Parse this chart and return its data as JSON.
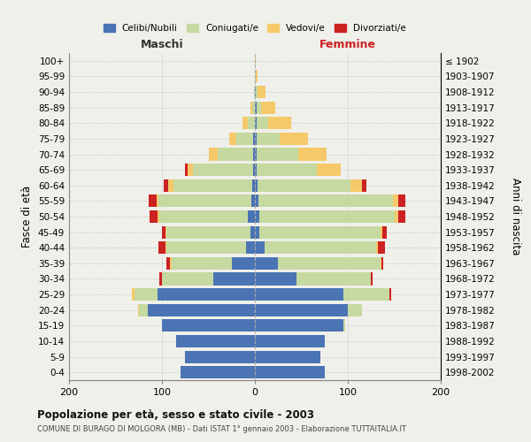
{
  "age_groups": [
    "0-4",
    "5-9",
    "10-14",
    "15-19",
    "20-24",
    "25-29",
    "30-34",
    "35-39",
    "40-44",
    "45-49",
    "50-54",
    "55-59",
    "60-64",
    "65-69",
    "70-74",
    "75-79",
    "80-84",
    "85-89",
    "90-94",
    "95-99",
    "100+"
  ],
  "birth_years": [
    "1998-2002",
    "1993-1997",
    "1988-1992",
    "1983-1987",
    "1978-1982",
    "1973-1977",
    "1968-1972",
    "1963-1967",
    "1958-1962",
    "1953-1957",
    "1948-1952",
    "1943-1947",
    "1938-1942",
    "1933-1937",
    "1928-1932",
    "1923-1927",
    "1918-1922",
    "1913-1917",
    "1908-1912",
    "1903-1907",
    "≤ 1902"
  ],
  "male": {
    "celibe": [
      80,
      75,
      85,
      100,
      115,
      105,
      45,
      25,
      10,
      5,
      8,
      4,
      3,
      2,
      2,
      2,
      0,
      0,
      0,
      0,
      0
    ],
    "coniugato": [
      0,
      0,
      0,
      0,
      10,
      25,
      55,
      65,
      85,
      90,
      95,
      100,
      85,
      65,
      38,
      18,
      8,
      3,
      1,
      0,
      0
    ],
    "vedovo": [
      0,
      0,
      0,
      0,
      1,
      2,
      0,
      1,
      1,
      1,
      2,
      2,
      5,
      5,
      10,
      8,
      5,
      2,
      0,
      0,
      0
    ],
    "divorziato": [
      0,
      0,
      0,
      0,
      0,
      0,
      3,
      4,
      8,
      4,
      8,
      8,
      5,
      3,
      0,
      0,
      0,
      0,
      0,
      0,
      0
    ]
  },
  "female": {
    "nubile": [
      75,
      70,
      75,
      95,
      100,
      95,
      45,
      25,
      10,
      5,
      5,
      4,
      3,
      2,
      2,
      2,
      2,
      2,
      1,
      0,
      0
    ],
    "coniugata": [
      0,
      0,
      0,
      2,
      15,
      50,
      80,
      110,
      120,
      130,
      145,
      145,
      100,
      65,
      45,
      25,
      12,
      5,
      2,
      1,
      0
    ],
    "vedova": [
      0,
      0,
      0,
      0,
      0,
      0,
      0,
      1,
      2,
      2,
      4,
      5,
      12,
      25,
      30,
      30,
      25,
      15,
      8,
      2,
      1
    ],
    "divorziata": [
      0,
      0,
      0,
      0,
      0,
      2,
      2,
      2,
      8,
      5,
      8,
      8,
      5,
      0,
      0,
      0,
      0,
      0,
      0,
      0,
      0
    ]
  },
  "colors": {
    "celibe": "#4a74b4",
    "coniugato": "#c5d9a0",
    "vedovo": "#f5c96a",
    "divorziato": "#cc2222"
  },
  "xlim": 200,
  "title": "Popolazione per età, sesso e stato civile - 2003",
  "subtitle": "COMUNE DI BURAGO DI MOLGORA (MB) - Dati ISTAT 1° gennaio 2003 - Elaborazione TUTTAITALIA.IT",
  "ylabel_left": "Fasce di età",
  "ylabel_right": "Anni di nascita",
  "xlabel_left": "Maschi",
  "xlabel_right": "Femmine",
  "legend_labels": [
    "Celibi/Nubili",
    "Coniugati/e",
    "Vedovi/e",
    "Divorziati/e"
  ],
  "bg_color": "#f0f0eb"
}
